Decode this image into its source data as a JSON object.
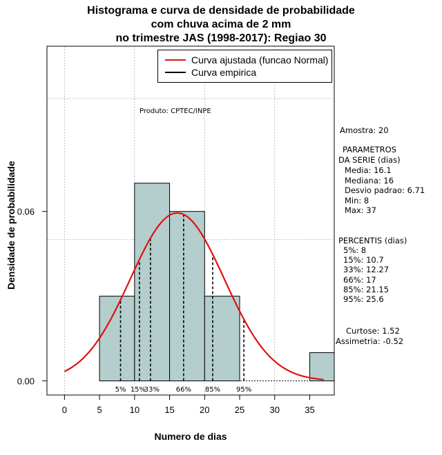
{
  "chart_data": {
    "type": "bar",
    "title_lines": [
      "Histograma e curva de densidade de probabilidade",
      "com chuva acima de 2 mm",
      "no trimestre JAS (1998-2017): Regiao 30"
    ],
    "xlabel": "Numero de dias",
    "ylabel": "Densidade de probabilidade",
    "xlim": [
      -2.5,
      38.5
    ],
    "ylim": [
      -0.005,
      0.1185
    ],
    "x_ticks": [
      0,
      5,
      10,
      15,
      20,
      25,
      30,
      35
    ],
    "y_ticks": [
      0.0,
      0.06
    ],
    "y_tick_labels": [
      "0.00",
      "0.06"
    ],
    "grid_x": [
      0,
      10,
      20,
      30
    ],
    "grid_y": [
      0.05,
      0.1
    ],
    "bins": [
      {
        "start": 5,
        "end": 10,
        "density": 0.03
      },
      {
        "start": 10,
        "end": 15,
        "density": 0.07
      },
      {
        "start": 15,
        "end": 20,
        "density": 0.06
      },
      {
        "start": 20,
        "end": 25,
        "density": 0.03
      },
      {
        "start": 25,
        "end": 30,
        "density": 0.0
      },
      {
        "start": 30,
        "end": 35,
        "density": 0.0
      },
      {
        "start": 35,
        "end": 40,
        "density": 0.01
      }
    ],
    "normal_fit": {
      "mean": 16.1,
      "sd": 6.71,
      "x_range": [
        0,
        37
      ]
    },
    "percentiles": [
      {
        "label": "5%",
        "value": 8
      },
      {
        "label": "15%",
        "value": 10.7
      },
      {
        "label": "33%",
        "value": 12.27
      },
      {
        "label": "66%",
        "value": 17
      },
      {
        "label": "85%",
        "value": 21.15
      },
      {
        "label": "95%",
        "value": 25.6
      }
    ],
    "legend": [
      {
        "label": "Curva ajustada (funcao Normal)",
        "color": "#e01010"
      },
      {
        "label": "Curva empirica",
        "color": "#000000"
      }
    ],
    "bar_color": "#b4cdcd",
    "curve_color": "#e01010"
  },
  "product_label": "Produto: CPTEC/INPE",
  "stats": {
    "amostra": "Amostra: 20",
    "parametros_title_1": "PARAMETROS",
    "parametros_title_2": "DA SERIE (dias)",
    "media": "Media: 16.1",
    "mediana": "Mediana: 16",
    "desvio": "Desvio padrao: 6.71",
    "min": "Min: 8",
    "max": "Max: 37",
    "percentis_title": "PERCENTIS (dias)",
    "p5": "5%: 8",
    "p15": "15%: 10.7",
    "p33": "33%: 12.27",
    "p66": "66%: 17",
    "p85": "85%: 21.15",
    "p95": "95%: 25.6",
    "curtose": "Curtose: 1.52",
    "assimetria": "Assimetria: -0.52"
  }
}
